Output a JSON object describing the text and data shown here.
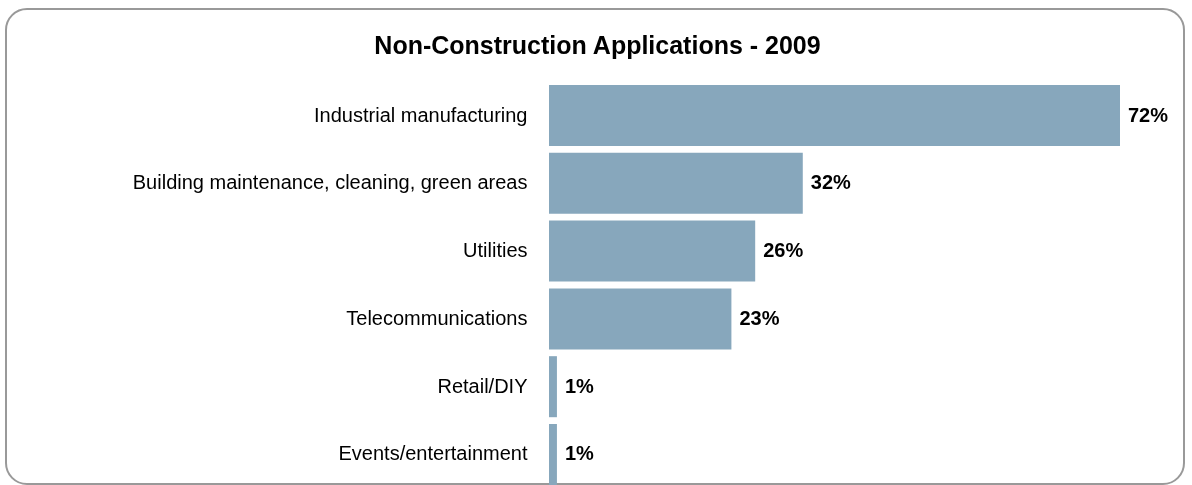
{
  "chart_data": {
    "type": "bar",
    "orientation": "horizontal",
    "title": "Non-Construction Applications - 2009",
    "categories": [
      "Industrial manufacturing",
      "Building maintenance, cleaning, green areas",
      "Utilities",
      "Telecommunications",
      "Retail/DIY",
      "Events/entertainment"
    ],
    "values": [
      72,
      32,
      26,
      23,
      1,
      1
    ],
    "value_labels": [
      "72%",
      "32%",
      "26%",
      "23%",
      "1%",
      "1%"
    ],
    "color": "#87a7bc"
  }
}
